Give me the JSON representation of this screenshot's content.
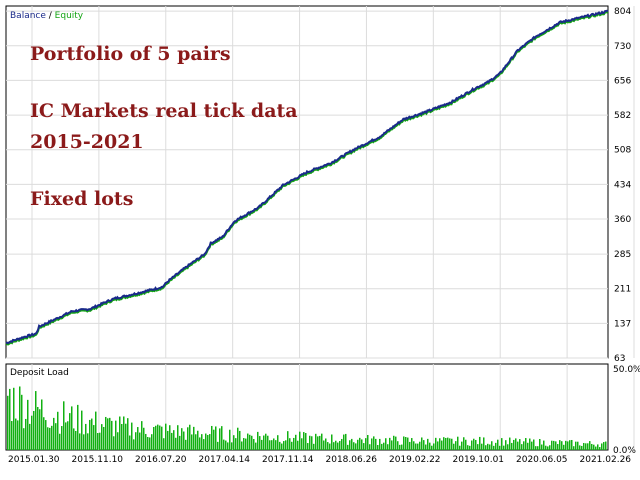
{
  "chart_data": [
    {
      "type": "line",
      "legend": {
        "balance": "Balance",
        "sep": " / ",
        "equity": "Equity"
      },
      "annotations": [
        "Portfolio of 5 pairs",
        "IC Markets real tick data",
        "2015-2021",
        "Fixed lots"
      ],
      "y_ticks": [
        63,
        137,
        211,
        285,
        360,
        434,
        508,
        582,
        656,
        730,
        804
      ],
      "ylim": [
        63,
        815
      ],
      "x_ticks": [
        "2015.01.30",
        "2015.11.10",
        "2016.07.20",
        "2017.04.14",
        "2017.11.14",
        "2018.06.26",
        "2019.02.22",
        "2019.10.01",
        "2020.06.05",
        "2021.02.26"
      ],
      "grid": true,
      "series": [
        {
          "name": "Balance",
          "color": "#1a2a8a",
          "x": [
            0,
            0.03,
            0.05,
            0.055,
            0.08,
            0.11,
            0.14,
            0.17,
            0.18,
            0.22,
            0.26,
            0.27,
            0.3,
            0.33,
            0.34,
            0.36,
            0.38,
            0.42,
            0.46,
            0.5,
            0.54,
            0.58,
            0.62,
            0.66,
            0.7,
            0.74,
            0.78,
            0.8,
            0.82,
            0.85,
            0.88,
            0.92,
            0.96,
            1.0
          ],
          "y": [
            95,
            108,
            115,
            130,
            145,
            163,
            168,
            185,
            190,
            202,
            215,
            228,
            258,
            285,
            308,
            322,
            356,
            385,
            432,
            460,
            480,
            510,
            535,
            573,
            590,
            610,
            640,
            652,
            670,
            720,
            750,
            780,
            792,
            804
          ]
        },
        {
          "name": "Equity",
          "color": "#14a414",
          "x": [
            0,
            0.03,
            0.05,
            0.055,
            0.08,
            0.11,
            0.14,
            0.17,
            0.18,
            0.22,
            0.26,
            0.27,
            0.3,
            0.33,
            0.34,
            0.36,
            0.38,
            0.42,
            0.46,
            0.5,
            0.54,
            0.58,
            0.62,
            0.66,
            0.7,
            0.74,
            0.78,
            0.8,
            0.82,
            0.85,
            0.88,
            0.92,
            0.96,
            1.0
          ],
          "y": [
            92,
            105,
            112,
            127,
            142,
            160,
            165,
            182,
            187,
            199,
            212,
            225,
            255,
            282,
            305,
            319,
            353,
            382,
            429,
            457,
            477,
            507,
            532,
            570,
            587,
            607,
            637,
            649,
            667,
            717,
            747,
            777,
            789,
            801
          ]
        }
      ]
    },
    {
      "type": "bar",
      "title": "Deposit Load",
      "y_ticks": [
        "50.0%",
        "0.0%"
      ],
      "ylim": [
        0,
        50
      ],
      "bar_color": "#12b012",
      "envelope": {
        "x": [
          0,
          0.05,
          0.1,
          0.15,
          0.2,
          0.3,
          0.4,
          0.5,
          0.6,
          0.7,
          0.8,
          0.9,
          1.0
        ],
        "y": [
          36,
          28,
          22,
          18,
          15,
          12,
          10,
          8,
          7,
          6,
          6,
          5,
          4
        ]
      }
    }
  ]
}
